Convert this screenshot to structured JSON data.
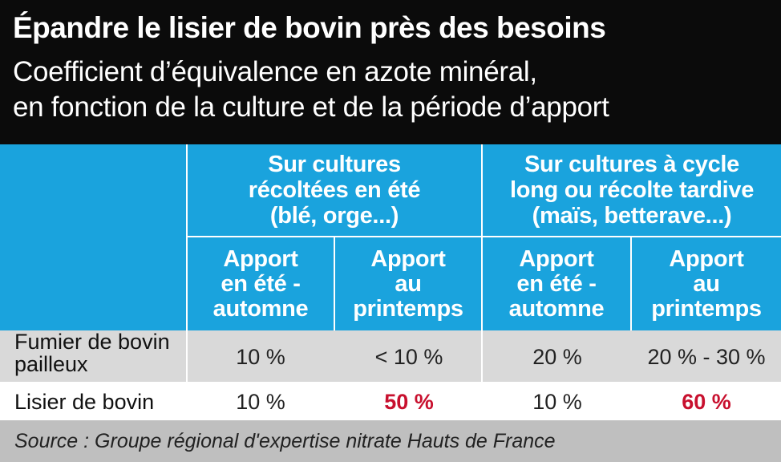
{
  "title": "Épandre le lisier de bovin près des besoins",
  "subtitle_line1": "Coefficient d’équivalence en azote minéral,",
  "subtitle_line2": "en fonction de la culture et de la période d’apport",
  "groups": [
    {
      "lines": [
        "Sur cultures",
        "récoltées en été",
        "(blé, orge...)"
      ]
    },
    {
      "lines": [
        "Sur cultures à cycle",
        "long ou récolte tardive",
        "(maïs, betterave...)"
      ]
    }
  ],
  "subheaders": [
    {
      "lines": [
        "Apport",
        "en été -",
        "automne"
      ]
    },
    {
      "lines": [
        "Apport",
        "au",
        "printemps"
      ]
    },
    {
      "lines": [
        "Apport",
        "en été -",
        "automne"
      ]
    },
    {
      "lines": [
        "Apport",
        "au",
        "printemps"
      ]
    }
  ],
  "rows": [
    {
      "label_lines": [
        "Fumier de bovin",
        "pailleux"
      ],
      "values": [
        "10 %",
        "< 10 %",
        "20 %",
        "20 % - 30 %"
      ]
    },
    {
      "label_lines": [
        "Lisier de bovin"
      ],
      "values": [
        "10 %",
        "50 %",
        "10 %",
        "60 %"
      ]
    }
  ],
  "highlight_color": "#c8102e",
  "header_blue": "#1aa3dd",
  "source": "Source : Groupe régional d'expertise nitrate Hauts de France"
}
